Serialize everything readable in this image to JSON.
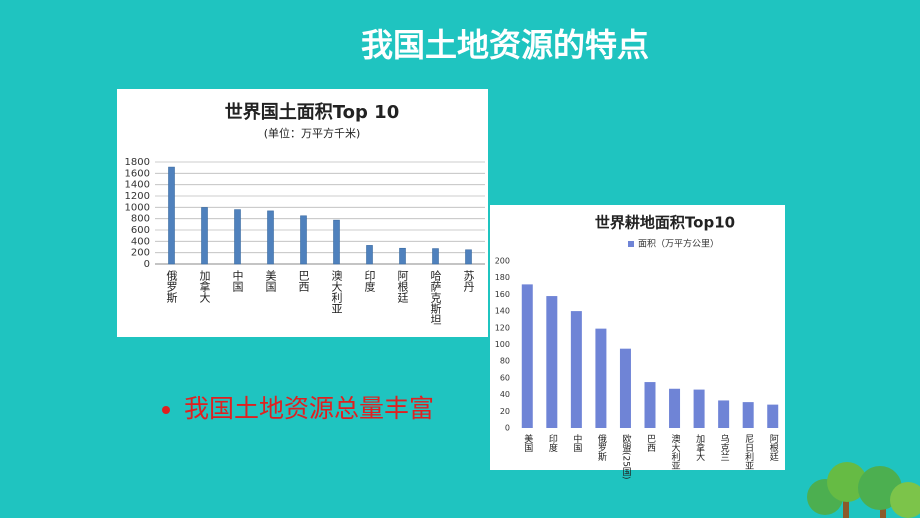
{
  "slide": {
    "title": "我国土地资源的特点",
    "bullet": "我国土地资源总量丰富"
  },
  "chart_data": [
    {
      "type": "bar",
      "title": "世界国土面积Top 10",
      "subtitle": "(单位：万平方千米)",
      "categories": [
        "俄罗斯",
        "加拿大",
        "中国",
        "美国",
        "巴西",
        "澳大利亚",
        "印度",
        "阿根廷",
        "哈萨克斯坦",
        "苏丹"
      ],
      "values": [
        1710,
        998,
        960,
        937,
        851,
        774,
        328,
        278,
        272,
        251
      ],
      "color": "#4f81bd",
      "ylim": [
        0,
        1800
      ],
      "yticks": [
        0,
        200,
        400,
        600,
        800,
        1000,
        1200,
        1400,
        1600,
        1800
      ],
      "grid": true
    },
    {
      "type": "bar",
      "title": "世界耕地面积Top10",
      "categories": [
        "美国",
        "印度",
        "中国",
        "俄罗斯",
        "欧盟(25国)",
        "巴西",
        "澳大利亚",
        "加拿大",
        "乌克兰",
        "尼日利亚",
        "阿根廷"
      ],
      "series": [
        {
          "name": "面积（万平方公里）",
          "color": "#6f84d6",
          "values": [
            172,
            158,
            140,
            119,
            95,
            55,
            47,
            46,
            33,
            31,
            28
          ]
        }
      ],
      "ylim": [
        0,
        200
      ],
      "yticks": [
        0,
        20,
        40,
        60,
        80,
        100,
        120,
        140,
        160,
        180,
        200
      ],
      "grid": false
    }
  ]
}
